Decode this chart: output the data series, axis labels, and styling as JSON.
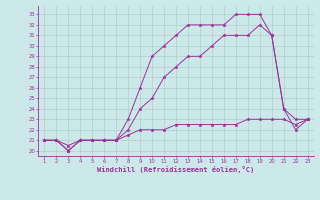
{
  "background_color": "#cce8e8",
  "grid_color": "#b0c8c8",
  "line_color": "#993399",
  "xlabel": "Windchill (Refroidissement éolien,°C)",
  "x_ticks": [
    1,
    2,
    3,
    4,
    5,
    6,
    7,
    8,
    9,
    10,
    11,
    12,
    13,
    14,
    15,
    16,
    17,
    18,
    19,
    20,
    21,
    22,
    23
  ],
  "y_ticks": [
    20,
    21,
    22,
    23,
    24,
    25,
    26,
    27,
    28,
    29,
    30,
    31,
    32,
    33
  ],
  "line1_x": [
    1,
    2,
    3,
    4,
    5,
    6,
    7,
    8,
    9,
    10,
    11,
    12,
    13,
    14,
    15,
    16,
    17,
    18,
    19,
    20,
    21,
    22,
    23
  ],
  "line1_y": [
    21,
    21,
    20,
    21,
    21,
    21,
    21,
    23,
    26,
    29,
    30,
    31,
    32,
    32,
    32,
    32,
    33,
    33,
    33,
    31,
    24,
    23,
    23
  ],
  "line2_x": [
    1,
    2,
    3,
    4,
    5,
    6,
    7,
    8,
    9,
    10,
    11,
    12,
    13,
    14,
    15,
    16,
    17,
    18,
    19,
    20,
    21,
    22,
    23
  ],
  "line2_y": [
    21,
    21,
    20,
    21,
    21,
    21,
    21,
    22,
    24,
    25,
    27,
    28,
    29,
    29,
    30,
    31,
    31,
    31,
    32,
    31,
    24,
    22,
    23
  ],
  "line3_x": [
    1,
    2,
    3,
    4,
    5,
    6,
    7,
    8,
    9,
    10,
    11,
    12,
    13,
    14,
    15,
    16,
    17,
    18,
    19,
    20,
    21,
    22,
    23
  ],
  "line3_y": [
    21,
    21,
    20.5,
    21,
    21,
    21,
    21,
    21.5,
    22,
    22,
    22,
    22.5,
    22.5,
    22.5,
    22.5,
    22.5,
    22.5,
    23,
    23,
    23,
    23,
    22.5,
    23
  ]
}
